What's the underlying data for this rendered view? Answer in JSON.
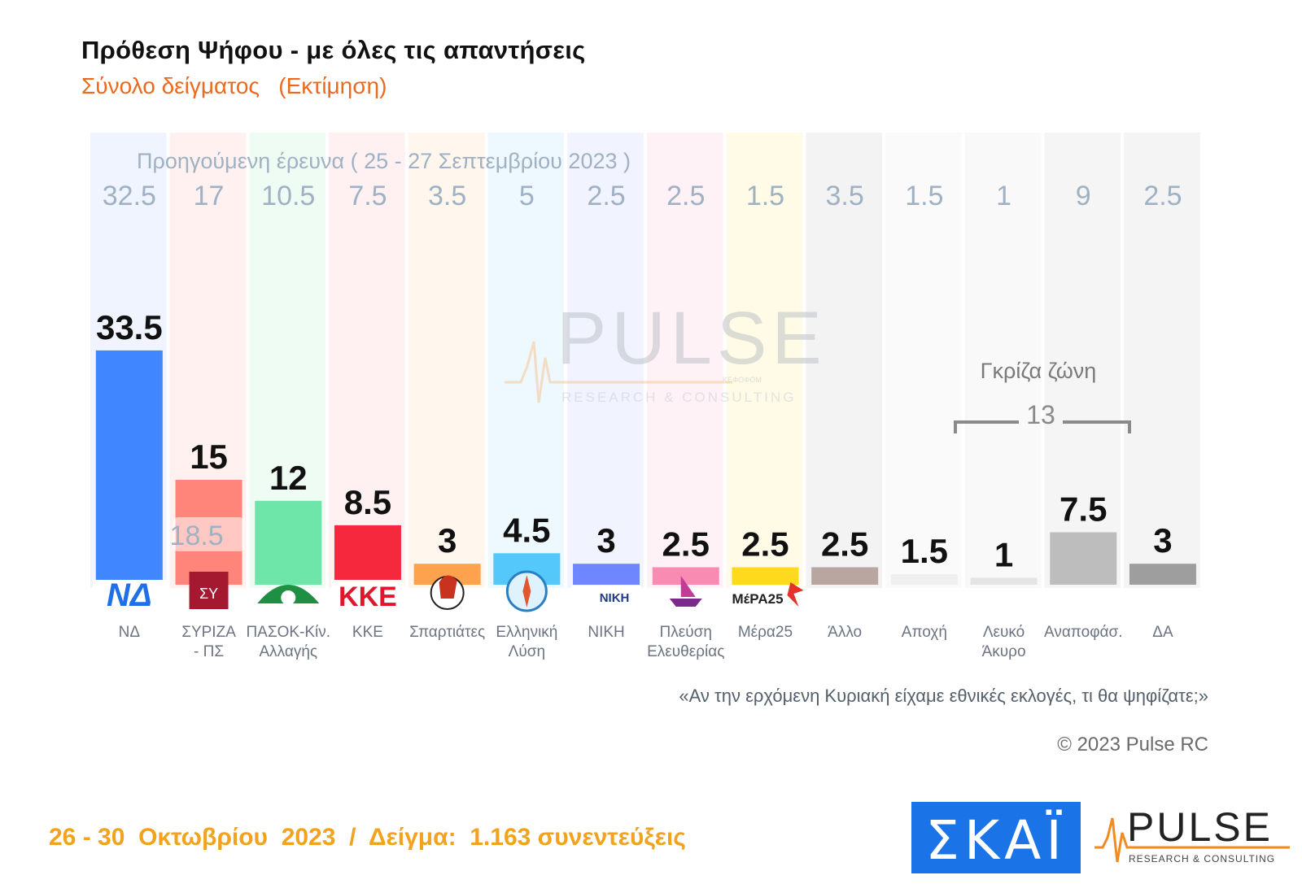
{
  "title": "Πρόθεση Ψήφου - με όλες τις απαντήσεις",
  "subtitle": "Σύνολο δείγματος   (Εκτίμηση)",
  "prev_label": "Προηγούμενη έρευνα  ( 25 - 27 Σεπτεμβρίου 2023 )",
  "watermark": {
    "word": "PULSE",
    "tag": "RESEARCH & CONSULTING",
    "small": "ΚΕΦΟΦΟΜ"
  },
  "gray_zone": {
    "label": "Γκρίζα ζώνη",
    "value": "13"
  },
  "question": "«Αν την ερχόμενη Κυριακή είχαμε εθνικές εκλογές, τι θα ψηφίζατε;»",
  "copyright": "© 2023 Pulse RC",
  "footer": "26 - 30  Οκτωβρίου  2023  /  Δείγμα:  1.163 συνεντεύξεις",
  "logos": {
    "skat": "ΣΚΑΪ",
    "pulse": "PULSE",
    "pulse_tag": "RESEARCH & CONSULTING"
  },
  "chart_data": {
    "type": "bar",
    "title": "Πρόθεση Ψήφου - με όλες τις απαντήσεις",
    "ylim": [
      0,
      42
    ],
    "categories": [
      "ΝΔ",
      "ΣΥΡΙΖΑ - ΠΣ",
      "ΠΑΣΟΚ-Κίν. Αλλαγής",
      "ΚΚΕ",
      "Σπαρτιάτες",
      "Ελληνική Λύση",
      "ΝΙΚΗ",
      "Πλεύση Ελευθερίας",
      "Μέρα25",
      "Άλλο",
      "Αποχή",
      "Λευκό Άκυρο",
      "Αναποφάσ.",
      "ΔΑ"
    ],
    "label_lines": [
      [
        "ΝΔ"
      ],
      [
        "ΣΥΡΙΖΑ",
        "- ΠΣ"
      ],
      [
        "ΠΑΣΟΚ-Κίν.",
        "Αλλαγής"
      ],
      [
        "ΚΚΕ"
      ],
      [
        "Σπαρτιάτες"
      ],
      [
        "Ελληνική",
        "Λύση"
      ],
      [
        "ΝΙΚΗ"
      ],
      [
        "Πλεύση",
        "Ελευθερίας"
      ],
      [
        "Μέρα25"
      ],
      [
        "Άλλο"
      ],
      [
        "Αποχή"
      ],
      [
        "Λευκό",
        "Άκυρο"
      ],
      [
        "Αναποφάσ."
      ],
      [
        "ΔΑ"
      ]
    ],
    "series": [
      {
        "name": "Οκτώβριος 2023",
        "values": [
          33.5,
          15,
          12,
          8.5,
          3,
          4.5,
          3,
          2.5,
          2.5,
          2.5,
          1.5,
          1,
          7.5,
          3
        ]
      },
      {
        "name": "Προηγούμενη έρευνα",
        "values": [
          32.5,
          17,
          10.5,
          7.5,
          3.5,
          5,
          2.5,
          2.5,
          1.5,
          3.5,
          1.5,
          1,
          9,
          2.5
        ]
      }
    ],
    "value_labels": [
      "33.5",
      "15",
      "12",
      "8.5",
      "3",
      "4.5",
      "3",
      "2.5",
      "2.5",
      "2.5",
      "1.5",
      "1",
      "7.5",
      "3"
    ],
    "prev_labels": [
      "32.5",
      "17",
      "10.5",
      "7.5",
      "3.5",
      "5",
      "2.5",
      "2.5",
      "1.5",
      "3.5",
      "1.5",
      "1",
      "9",
      "2.5"
    ],
    "colors": [
      "#3f86ff",
      "#ff857a",
      "#6fe6a9",
      "#f6283e",
      "#ffa24d",
      "#55c8fb",
      "#6e86ff",
      "#f98bb3",
      "#ffd91e",
      "#b9a6a0",
      "#efefef",
      "#e4e4e4",
      "#bdbdbd",
      "#9e9e9e"
    ],
    "bg_colors": [
      "#eff4ff",
      "#fff1ef",
      "#effcf4",
      "#fff0f1",
      "#fff6ed",
      "#eef8ff",
      "#f1f3ff",
      "#fff2f6",
      "#fffbe6",
      "#f4f3f3",
      "#fafafa",
      "#f9f9f9",
      "#f5f5f5",
      "#f4f4f4"
    ],
    "logo_names": [
      "nd-logo",
      "syriza-logo",
      "pasok-logo",
      "kke-logo",
      "spartiates-logo",
      "elliniki-lysi-logo",
      "niki-logo",
      "plefsi-logo",
      "mera25-logo",
      "",
      "",
      "",
      "",
      ""
    ],
    "logo_text": [
      "ΝΔ",
      "ΣΥ",
      "",
      "ΚΚΕ",
      "",
      "",
      "ΝΙΚΗ",
      "",
      "ΜέΡΑ25",
      "",
      "",
      "",
      "",
      ""
    ],
    "inset_label": "18.5"
  }
}
